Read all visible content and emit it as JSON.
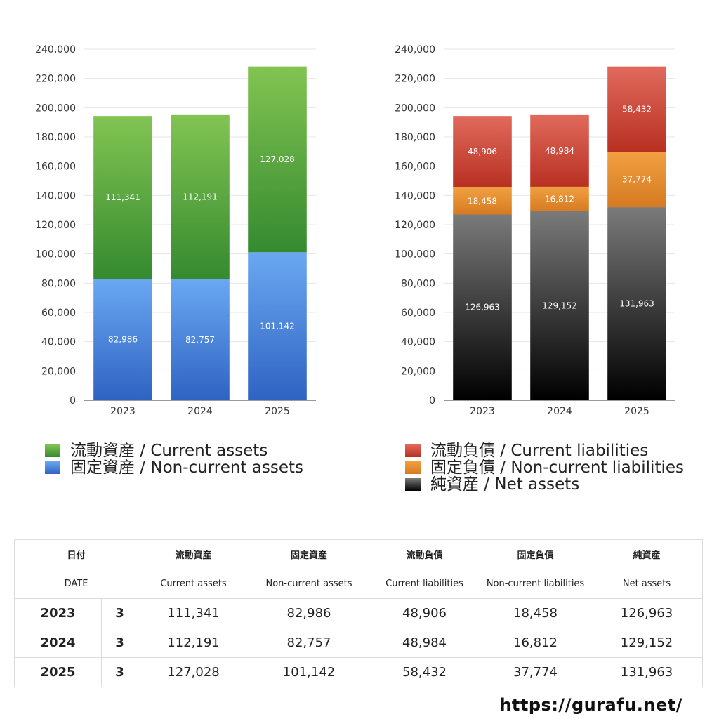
{
  "chart_data": [
    {
      "type": "bar",
      "stacked": true,
      "categories": [
        "2023",
        "2024",
        "2025"
      ],
      "series": [
        {
          "name": "固定資産 / Non-current assets",
          "values": [
            82986,
            82757,
            101142
          ],
          "color": "#3a78d4"
        },
        {
          "name": "流動資産 / Current assets",
          "values": [
            111341,
            112191,
            127028
          ],
          "color": "#45a03c"
        }
      ],
      "data_labels": {
        "non_current_assets": [
          "82,986",
          "82,757",
          "101,142"
        ],
        "current_assets": [
          "111,341",
          "112,191",
          "127,028"
        ]
      },
      "yticks": [
        "0",
        "20,000",
        "40,000",
        "60,000",
        "80,000",
        "100,000",
        "120,000",
        "140,000",
        "160,000",
        "180,000",
        "200,000",
        "220,000",
        "240,000"
      ],
      "ylim": [
        0,
        240000
      ],
      "grid": true,
      "legend_placement": "bottom"
    },
    {
      "type": "bar",
      "stacked": true,
      "categories": [
        "2023",
        "2024",
        "2025"
      ],
      "series": [
        {
          "name": "純資産 / Net assets",
          "values": [
            126963,
            129152,
            131963
          ],
          "color": "#222222"
        },
        {
          "name": "固定負債 / Non-current liabilities",
          "values": [
            18458,
            16812,
            37774
          ],
          "color": "#e08a2c"
        },
        {
          "name": "流動負債 / Current liabilities",
          "values": [
            48906,
            48984,
            58432
          ],
          "color": "#c8352a"
        }
      ],
      "data_labels": {
        "net_assets": [
          "126,963",
          "129,152",
          "131,963"
        ],
        "non_current_liabilities": [
          "18,458",
          "16,812",
          "37,774"
        ],
        "current_liabilities": [
          "48,906",
          "48,984",
          "58,432"
        ]
      },
      "yticks": [
        "0",
        "20,000",
        "40,000",
        "60,000",
        "80,000",
        "100,000",
        "120,000",
        "140,000",
        "160,000",
        "180,000",
        "200,000",
        "220,000",
        "240,000"
      ],
      "ylim": [
        0,
        240000
      ],
      "grid": true,
      "legend_placement": "bottom"
    }
  ],
  "legend_left": [
    {
      "label": "流動資産 / Current assets",
      "color": "#45a03c"
    },
    {
      "label": "固定資産 / Non-current assets",
      "color": "#3a78d4"
    }
  ],
  "legend_right": [
    {
      "label": "流動負債 / Current liabilities",
      "color": "#c8352a"
    },
    {
      "label": "固定負債 / Non-current liabilities",
      "color": "#e08a2c"
    },
    {
      "label": "純資産 / Net assets",
      "color": "#222222"
    }
  ],
  "table": {
    "header_jp": [
      "日付",
      "",
      "流動資産",
      "固定資産",
      "流動負債",
      "固定負債",
      "純資産"
    ],
    "header_en": [
      "DATE",
      "",
      "Current assets",
      "Non-current assets",
      "Current liabilities",
      "Non-current liabilities",
      "Net assets"
    ],
    "rows": [
      {
        "year": "2023",
        "month": "3",
        "values": [
          "111,341",
          "82,986",
          "48,906",
          "18,458",
          "126,963"
        ]
      },
      {
        "year": "2024",
        "month": "3",
        "values": [
          "112,191",
          "82,757",
          "48,984",
          "16,812",
          "129,152"
        ]
      },
      {
        "year": "2025",
        "month": "3",
        "values": [
          "127,028",
          "101,142",
          "58,432",
          "37,774",
          "131,963"
        ]
      }
    ]
  },
  "footer": {
    "url": "https://gurafu.net/"
  }
}
